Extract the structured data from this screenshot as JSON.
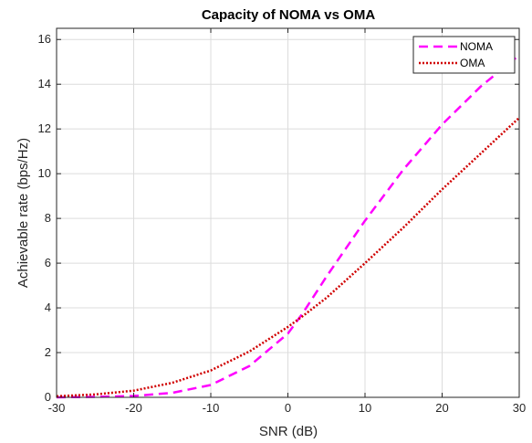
{
  "chart_data": {
    "type": "line",
    "title": "Capacity of NOMA vs OMA",
    "xlabel": "SNR (dB)",
    "ylabel": "Achievable rate (bps/Hz)",
    "xlim": [
      -30,
      30
    ],
    "ylim": [
      0,
      16.5
    ],
    "xticks": [
      -30,
      -20,
      -10,
      0,
      10,
      20,
      30
    ],
    "yticks": [
      0,
      2,
      4,
      6,
      8,
      10,
      12,
      14,
      16
    ],
    "grid": true,
    "legend_position": "top-right",
    "x": [
      -30,
      -25,
      -20,
      -15,
      -10,
      -5,
      0,
      2,
      5,
      10,
      15,
      20,
      25,
      30
    ],
    "series": [
      {
        "name": "NOMA",
        "color": "#ff00ff",
        "style": "dashed",
        "values": [
          0.0,
          0.02,
          0.06,
          0.2,
          0.55,
          1.4,
          2.85,
          3.8,
          5.4,
          7.9,
          10.2,
          12.2,
          13.9,
          15.3
        ]
      },
      {
        "name": "OMA",
        "color": "#d00000",
        "style": "dotted",
        "values": [
          0.05,
          0.13,
          0.3,
          0.65,
          1.2,
          2.05,
          3.15,
          3.65,
          4.45,
          6.0,
          7.6,
          9.3,
          10.9,
          12.5
        ]
      }
    ]
  }
}
